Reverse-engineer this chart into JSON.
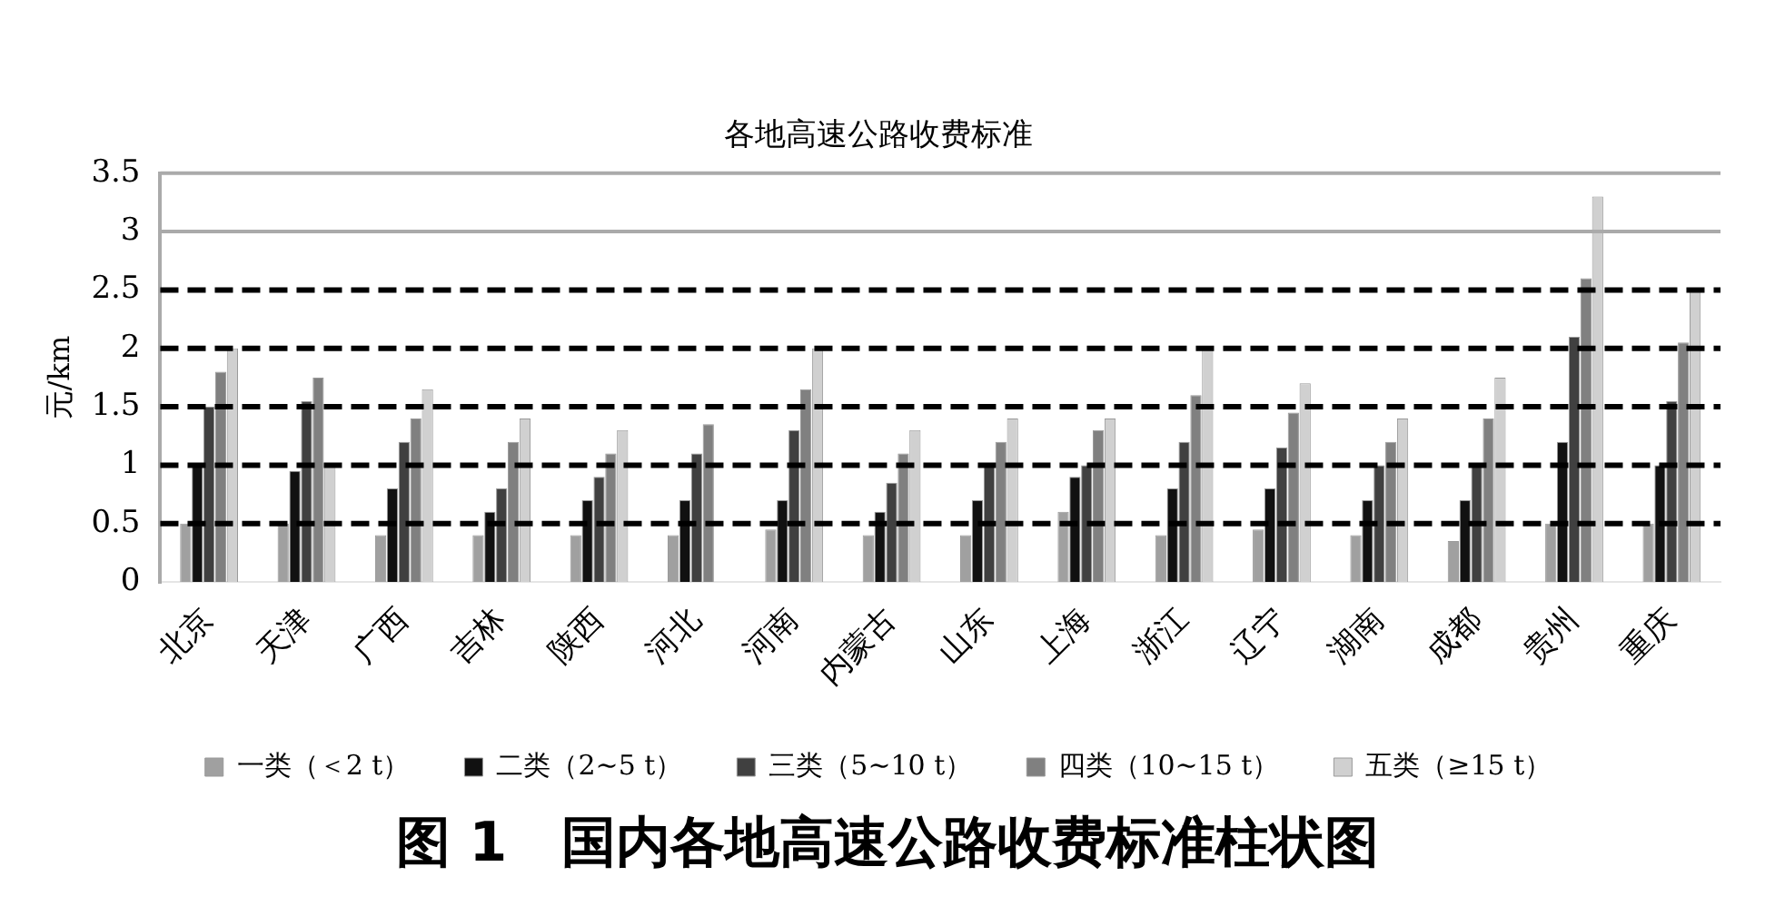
{
  "chart_data": {
    "type": "bar",
    "title": "各地高速公路收费标准",
    "ylabel": "元/km",
    "categories": [
      "北京",
      "天津",
      "广西",
      "吉林",
      "陕西",
      "河北",
      "河南",
      "内蒙古",
      "山东",
      "上海",
      "浙江",
      "辽宁",
      "湖南",
      "成都",
      "贵州",
      "重庆"
    ],
    "series": [
      {
        "name": "一类（＜2 t）",
        "color": "#a0a0a0",
        "values": [
          0.5,
          0.5,
          0.4,
          0.4,
          0.4,
          0.4,
          0.45,
          0.4,
          0.4,
          0.6,
          0.4,
          0.45,
          0.4,
          0.35,
          0.5,
          0.5
        ]
      },
      {
        "name": "二类（2~5 t）",
        "color": "#111111",
        "values": [
          1.0,
          0.95,
          0.8,
          0.6,
          0.7,
          0.7,
          0.7,
          0.6,
          0.7,
          0.9,
          0.8,
          0.8,
          0.7,
          0.7,
          1.2,
          1.0
        ]
      },
      {
        "name": "三类（5~10 t）",
        "color": "#404040",
        "values": [
          1.5,
          1.55,
          1.2,
          0.8,
          0.9,
          1.1,
          1.3,
          0.85,
          1.0,
          1.0,
          1.2,
          1.15,
          1.0,
          1.0,
          2.1,
          1.55
        ]
      },
      {
        "name": "四类（10~15 t）",
        "color": "#808080",
        "values": [
          1.8,
          1.75,
          1.4,
          1.2,
          1.1,
          1.35,
          1.65,
          1.1,
          1.2,
          1.3,
          1.6,
          1.45,
          1.2,
          1.4,
          2.6,
          2.05
        ]
      },
      {
        "name": "五类（≥15 t）",
        "color": "#d0d0d0",
        "values": [
          2.0,
          1.0,
          1.65,
          1.4,
          1.3,
          null,
          2.0,
          1.3,
          1.4,
          1.4,
          2.0,
          1.7,
          1.4,
          1.75,
          3.3,
          2.5
        ]
      }
    ],
    "ylim": [
      0,
      3.5
    ],
    "yticks": [
      0,
      0.5,
      1,
      1.5,
      2,
      2.5,
      3,
      3.5
    ],
    "legend": "bottom",
    "ref_lines": [
      {
        "axis": "y",
        "value": 0.5,
        "color": "#000000",
        "line_style": "dashed"
      },
      {
        "axis": "y",
        "value": 1,
        "color": "#000000",
        "line_style": "dashed"
      },
      {
        "axis": "y",
        "value": 1.5,
        "color": "#000000",
        "line_style": "dashed"
      },
      {
        "axis": "y",
        "value": 2,
        "color": "#000000",
        "line_style": "dashed"
      },
      {
        "axis": "y",
        "value": 2.5,
        "color": "#000000",
        "line_style": "dashed"
      },
      {
        "axis": "y",
        "value": 3,
        "color": "#aaaaaa",
        "line_style": "solid"
      },
      {
        "axis": "y",
        "value": 3.5,
        "color": "#aaaaaa",
        "line_style": "solid"
      }
    ],
    "annotations": [
      "图 1　国内各地高速公路收费标准柱状图"
    ]
  }
}
